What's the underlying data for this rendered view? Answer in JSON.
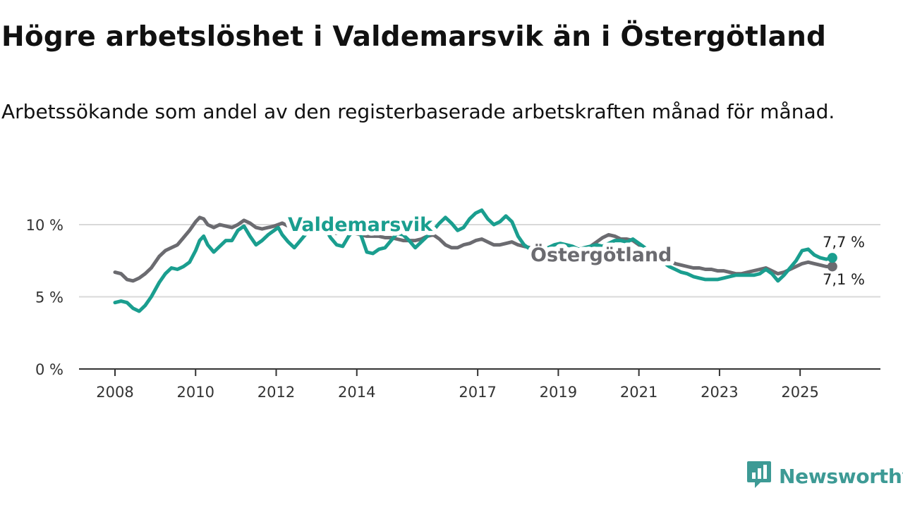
{
  "title": "Högre arbetslöshet i Valdemarsvik än i Östergötland",
  "subtitle": "Arbetssökande som andel av den registerbaserade arbetskraften månad för månad.",
  "brand": {
    "name": "Newsworthy",
    "logo_icon": "bar-chart-speech-bubble-icon",
    "color": "#3d9a95"
  },
  "chart_data": {
    "type": "line",
    "title": "Högre arbetslöshet i Valdemarsvik än i Östergötland",
    "xlabel": "",
    "ylabel": "",
    "xlim": [
      2008.0,
      2026.1
    ],
    "ylim": [
      0,
      10
    ],
    "y_ticks": [
      0,
      5,
      10
    ],
    "y_tick_labels": [
      "0 %",
      "5 %",
      "10 %"
    ],
    "x_ticks": [
      2008,
      2010,
      2012,
      2014,
      2017,
      2019,
      2021,
      2023,
      2025
    ],
    "x_tick_labels": [
      "2008",
      "2010",
      "2012",
      "2014",
      "2017",
      "2019",
      "2021",
      "2023",
      "2025"
    ],
    "grid": true,
    "series": [
      {
        "name": "Valdemarsvik",
        "color": "#1a9e8f",
        "end_label": "7,7 %",
        "x": [
          2008.0,
          2008.15,
          2008.3,
          2008.45,
          2008.6,
          2008.75,
          2008.9,
          2009.1,
          2009.25,
          2009.4,
          2009.55,
          2009.7,
          2009.85,
          2010.0,
          2010.1,
          2010.2,
          2010.3,
          2010.45,
          2010.6,
          2010.75,
          2010.9,
          2011.05,
          2011.2,
          2011.35,
          2011.5,
          2011.65,
          2011.8,
          2011.95,
          2012.05,
          2012.15,
          2012.3,
          2012.45,
          2012.6,
          2012.75,
          2012.9,
          2013.05,
          2013.2,
          2013.35,
          2013.5,
          2013.65,
          2013.8,
          2013.95,
          2014.1,
          2014.25,
          2014.4,
          2014.55,
          2014.7,
          2014.85,
          2015.0,
          2015.15,
          2015.3,
          2015.45,
          2015.6,
          2015.75,
          2015.9,
          2016.05,
          2016.2,
          2016.35,
          2016.5,
          2016.65,
          2016.8,
          2016.95,
          2017.1,
          2017.25,
          2017.4,
          2017.55,
          2017.7,
          2017.85,
          2018.0,
          2018.15,
          2018.3,
          2018.45,
          2018.6,
          2018.75,
          2018.9,
          2019.05,
          2019.2,
          2019.35,
          2019.5,
          2019.65,
          2019.8,
          2019.95,
          2020.1,
          2020.25,
          2020.4,
          2020.55,
          2020.7,
          2020.85,
          2021.0,
          2021.15,
          2021.3,
          2021.45,
          2021.6,
          2021.75,
          2021.9,
          2022.05,
          2022.2,
          2022.35,
          2022.5,
          2022.65,
          2022.8,
          2022.95,
          2023.1,
          2023.25,
          2023.4,
          2023.55,
          2023.7,
          2023.85,
          2024.0,
          2024.15,
          2024.3,
          2024.45,
          2024.6,
          2024.75,
          2024.9,
          2025.05,
          2025.2,
          2025.35,
          2025.5,
          2025.65,
          2025.8
        ],
        "values": [
          4.6,
          4.7,
          4.6,
          4.2,
          4.0,
          4.4,
          5.0,
          6.0,
          6.6,
          7.0,
          6.9,
          7.1,
          7.4,
          8.2,
          8.9,
          9.2,
          8.6,
          8.1,
          8.5,
          8.9,
          8.9,
          9.6,
          9.9,
          9.2,
          8.6,
          8.9,
          9.3,
          9.6,
          9.8,
          9.3,
          8.8,
          8.4,
          8.9,
          9.4,
          9.7,
          10.0,
          9.8,
          9.1,
          8.6,
          8.5,
          9.2,
          9.7,
          9.3,
          8.1,
          8.0,
          8.3,
          8.4,
          8.9,
          9.4,
          9.3,
          8.9,
          8.4,
          8.8,
          9.2,
          9.6,
          10.1,
          10.5,
          10.1,
          9.6,
          9.8,
          10.4,
          10.8,
          11.0,
          10.4,
          10.0,
          10.2,
          10.6,
          10.2,
          9.2,
          8.6,
          8.3,
          8.1,
          8.2,
          8.4,
          8.6,
          8.7,
          8.6,
          8.5,
          8.3,
          8.4,
          8.5,
          8.6,
          8.5,
          8.7,
          8.9,
          8.9,
          8.8,
          9.0,
          8.7,
          8.4,
          7.9,
          7.6,
          7.4,
          7.1,
          6.9,
          6.7,
          6.6,
          6.4,
          6.3,
          6.2,
          6.2,
          6.2,
          6.3,
          6.4,
          6.5,
          6.5,
          6.5,
          6.5,
          6.6,
          6.9,
          6.6,
          6.1,
          6.5,
          7.0,
          7.5,
          8.2,
          8.3,
          7.9,
          7.7,
          7.6,
          7.7
        ]
      },
      {
        "name": "Östergötland",
        "color": "#6b6b70",
        "end_label": "7,1 %",
        "x": [
          2008.0,
          2008.15,
          2008.3,
          2008.45,
          2008.6,
          2008.75,
          2008.9,
          2009.1,
          2009.25,
          2009.4,
          2009.55,
          2009.7,
          2009.85,
          2010.0,
          2010.1,
          2010.2,
          2010.3,
          2010.45,
          2010.6,
          2010.75,
          2010.9,
          2011.05,
          2011.2,
          2011.35,
          2011.5,
          2011.65,
          2011.8,
          2011.95,
          2012.05,
          2012.15,
          2012.3,
          2012.45,
          2012.6,
          2012.75,
          2012.9,
          2013.05,
          2013.2,
          2013.35,
          2013.5,
          2013.65,
          2013.8,
          2013.95,
          2014.1,
          2014.25,
          2014.4,
          2014.55,
          2014.7,
          2014.85,
          2015.0,
          2015.15,
          2015.3,
          2015.45,
          2015.6,
          2015.75,
          2015.9,
          2016.05,
          2016.2,
          2016.35,
          2016.5,
          2016.65,
          2016.8,
          2016.95,
          2017.1,
          2017.25,
          2017.4,
          2017.55,
          2017.7,
          2017.85,
          2018.0,
          2018.15,
          2018.3,
          2018.45,
          2018.6,
          2018.75,
          2018.9,
          2019.05,
          2019.2,
          2019.35,
          2019.5,
          2019.65,
          2019.8,
          2019.95,
          2020.1,
          2020.25,
          2020.4,
          2020.55,
          2020.7,
          2020.85,
          2021.0,
          2021.15,
          2021.3,
          2021.45,
          2021.6,
          2021.75,
          2021.9,
          2022.05,
          2022.2,
          2022.35,
          2022.5,
          2022.65,
          2022.8,
          2022.95,
          2023.1,
          2023.25,
          2023.4,
          2023.55,
          2023.7,
          2023.85,
          2024.0,
          2024.15,
          2024.3,
          2024.45,
          2024.6,
          2024.75,
          2024.9,
          2025.05,
          2025.2,
          2025.35,
          2025.5,
          2025.65,
          2025.8
        ],
        "values": [
          6.7,
          6.6,
          6.2,
          6.1,
          6.3,
          6.6,
          7.0,
          7.8,
          8.2,
          8.4,
          8.6,
          9.1,
          9.6,
          10.2,
          10.5,
          10.4,
          10.0,
          9.8,
          10.0,
          9.9,
          9.8,
          10.0,
          10.3,
          10.1,
          9.8,
          9.7,
          9.8,
          9.9,
          10.0,
          10.1,
          9.9,
          9.8,
          9.7,
          9.7,
          9.7,
          9.6,
          9.6,
          9.5,
          9.4,
          9.5,
          9.5,
          9.4,
          9.3,
          9.2,
          9.2,
          9.2,
          9.1,
          9.1,
          9.0,
          8.9,
          8.9,
          8.9,
          9.0,
          9.2,
          9.3,
          9.0,
          8.6,
          8.4,
          8.4,
          8.6,
          8.7,
          8.9,
          9.0,
          8.8,
          8.6,
          8.6,
          8.7,
          8.8,
          8.6,
          8.5,
          8.4,
          8.3,
          8.2,
          8.2,
          8.1,
          8.3,
          8.4,
          8.3,
          8.2,
          8.4,
          8.5,
          8.8,
          9.1,
          9.3,
          9.2,
          9.0,
          9.0,
          8.9,
          8.6,
          8.3,
          8.1,
          7.8,
          7.6,
          7.5,
          7.3,
          7.2,
          7.1,
          7.0,
          7.0,
          6.9,
          6.9,
          6.8,
          6.8,
          6.7,
          6.6,
          6.6,
          6.7,
          6.8,
          6.9,
          7.0,
          6.8,
          6.6,
          6.7,
          6.9,
          7.1,
          7.3,
          7.4,
          7.3,
          7.2,
          7.1,
          7.1
        ]
      }
    ],
    "annotations": [
      {
        "text": "Valdemarsvik",
        "series": "Valdemarsvik",
        "x": 2014.2,
        "y": 10.0
      },
      {
        "text": "Östergötland",
        "series": "Östergötland",
        "x": 2020.4,
        "y": 7.8
      }
    ]
  }
}
